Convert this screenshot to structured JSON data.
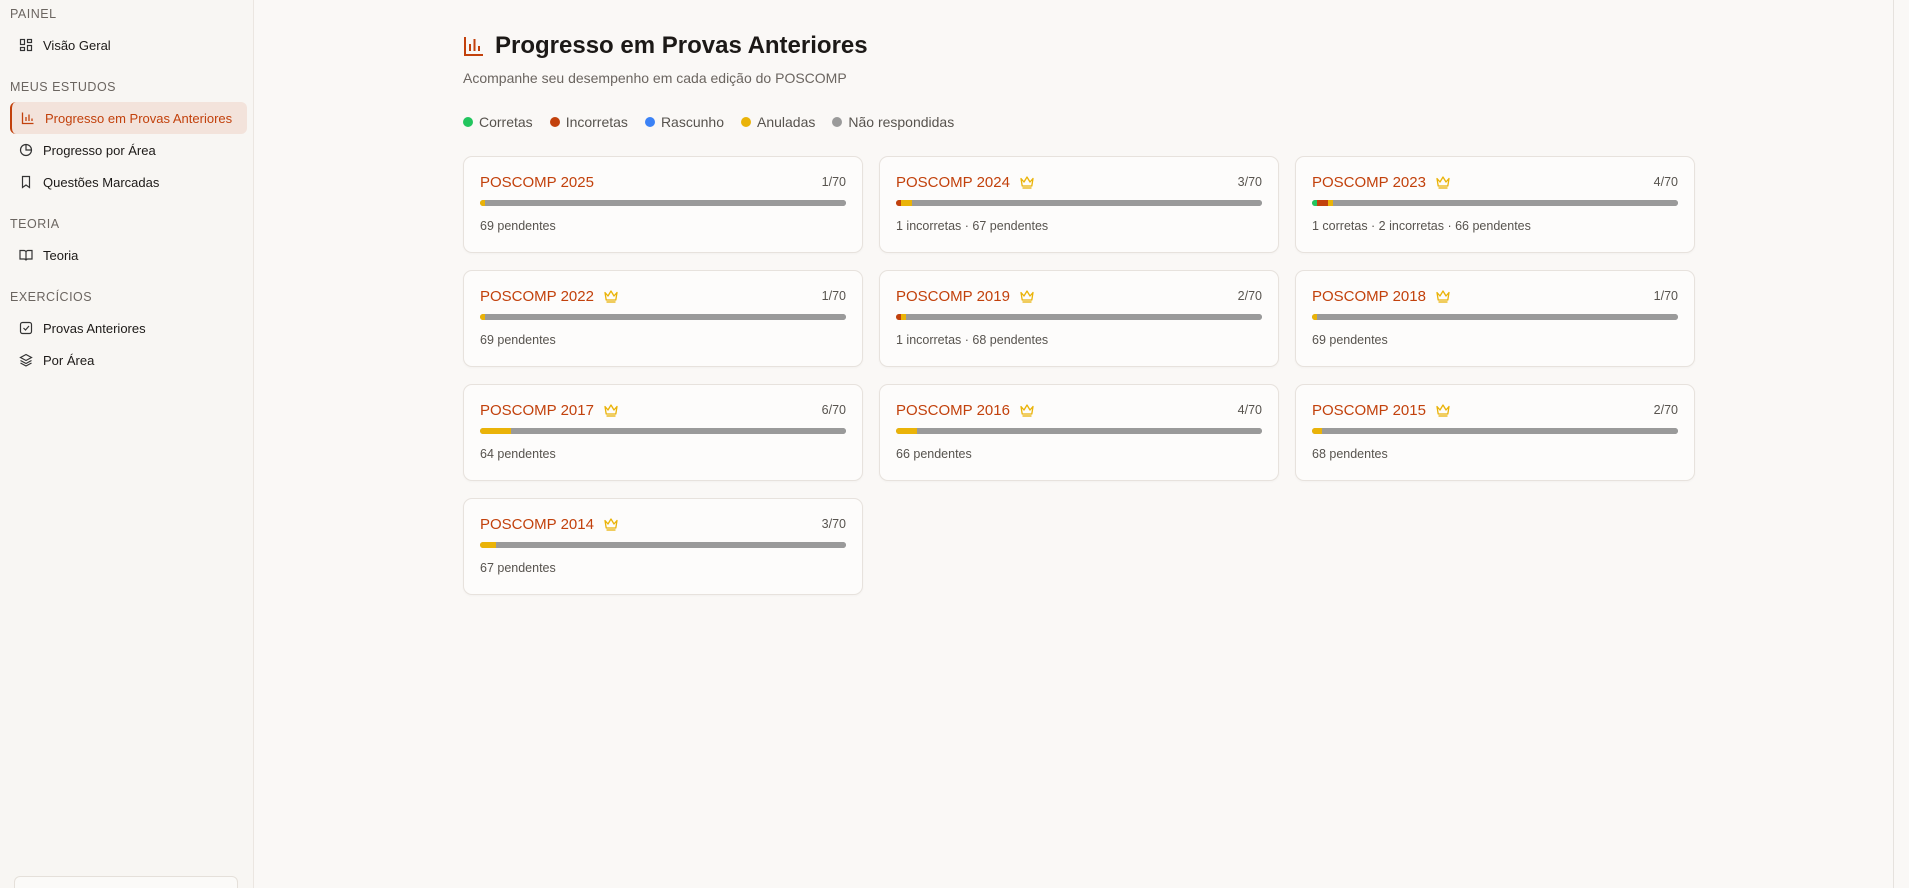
{
  "sidebar": {
    "sections": [
      {
        "label": "PAINEL",
        "items": [
          "Visão Geral"
        ]
      },
      {
        "label": "MEUS ESTUDOS",
        "items": [
          "Progresso em Provas Anteriores",
          "Progresso por Área",
          "Questões Marcadas"
        ]
      },
      {
        "label": "TEORIA",
        "items": [
          "Teoria"
        ]
      },
      {
        "label": "EXERCÍCIOS",
        "items": [
          "Provas Anteriores",
          "Por Área"
        ]
      }
    ]
  },
  "header": {
    "title": "Progresso em Provas Anteriores",
    "subtitle": "Acompanhe seu desempenho em cada edição do POSCOMP"
  },
  "legend": [
    {
      "name": "Corretas",
      "color": "#22c55e"
    },
    {
      "name": "Incorretas",
      "color": "#c2410c"
    },
    {
      "name": "Rascunho",
      "color": "#3b82f6"
    },
    {
      "name": "Anuladas",
      "color": "#eab308"
    },
    {
      "name": "Não respondidas",
      "color": "#9a9a9a"
    }
  ],
  "cards": [
    {
      "title": "POSCOMP 2025",
      "crown": false,
      "score": "1/70",
      "bar": [
        0,
        0,
        0,
        1,
        69
      ],
      "status": "69 pendentes"
    },
    {
      "title": "POSCOMP 2024",
      "crown": true,
      "score": "3/70",
      "bar": [
        0,
        1,
        0,
        2,
        67
      ],
      "status": "1 incorretas · 67 pendentes"
    },
    {
      "title": "POSCOMP 2023",
      "crown": true,
      "score": "4/70",
      "bar": [
        1,
        2,
        0,
        1,
        66
      ],
      "status": "1 corretas · 2 incorretas · 66 pendentes"
    },
    {
      "title": "POSCOMP 2022",
      "crown": true,
      "score": "1/70",
      "bar": [
        0,
        0,
        0,
        1,
        69
      ],
      "status": "69 pendentes"
    },
    {
      "title": "POSCOMP 2019",
      "crown": true,
      "score": "2/70",
      "bar": [
        0,
        1,
        0,
        1,
        68
      ],
      "status": "1 incorretas · 68 pendentes"
    },
    {
      "title": "POSCOMP 2018",
      "crown": true,
      "score": "1/70",
      "bar": [
        0,
        0,
        0,
        1,
        69
      ],
      "status": "69 pendentes"
    },
    {
      "title": "POSCOMP 2017",
      "crown": true,
      "score": "6/70",
      "bar": [
        0,
        0,
        0,
        6,
        64
      ],
      "status": "64 pendentes"
    },
    {
      "title": "POSCOMP 2016",
      "crown": true,
      "score": "4/70",
      "bar": [
        0,
        0,
        0,
        4,
        66
      ],
      "status": "66 pendentes"
    },
    {
      "title": "POSCOMP 2015",
      "crown": true,
      "score": "2/70",
      "bar": [
        0,
        0,
        0,
        2,
        68
      ],
      "status": "68 pendentes"
    },
    {
      "title": "POSCOMP 2014",
      "crown": true,
      "score": "3/70",
      "bar": [
        0,
        0,
        0,
        3,
        67
      ],
      "status": "67 pendentes"
    }
  ]
}
